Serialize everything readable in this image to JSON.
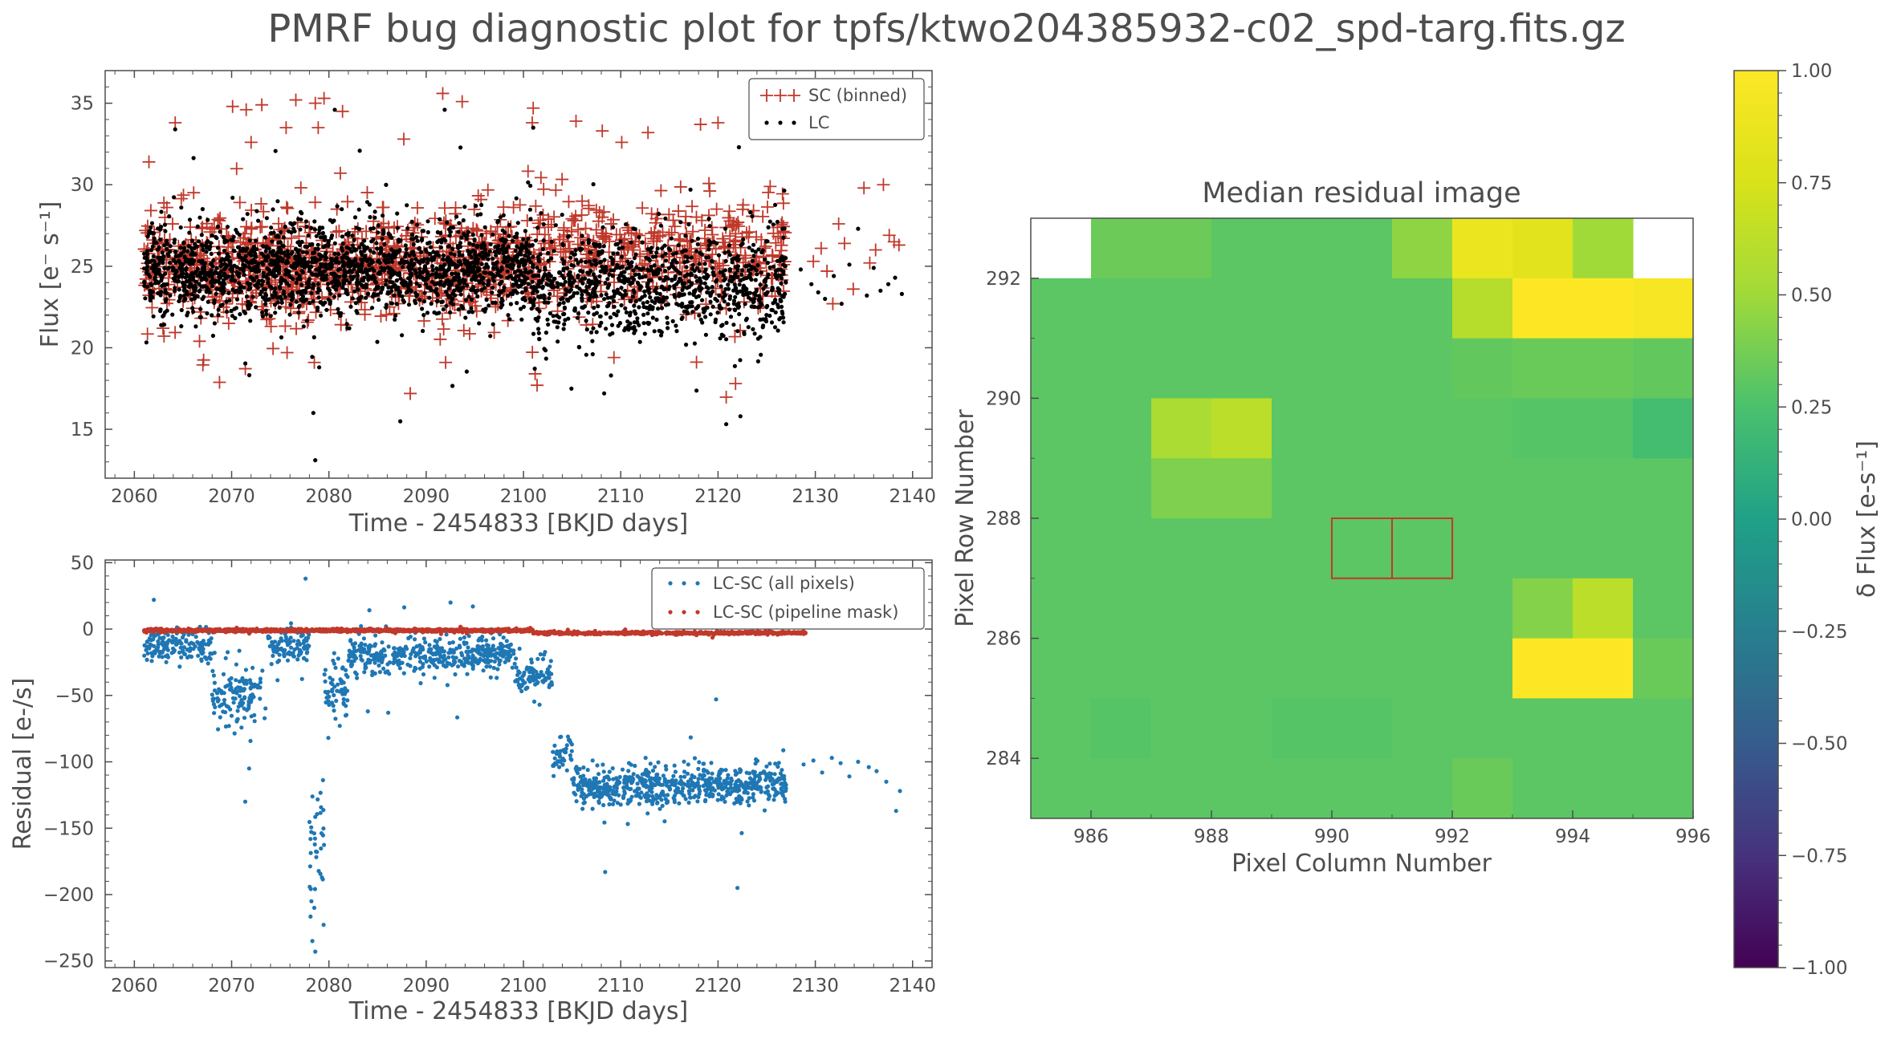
{
  "figure": {
    "title": "PMRF bug diagnostic plot for tpfs/ktwo204385932-c02_spd-targ.fits.gz"
  },
  "colors": {
    "sc": "#c0392b",
    "lc": "#000000",
    "all_pixels": "#1f77b4",
    "pipeline_mask": "#c0392b",
    "axis": "#4d4d4d"
  },
  "chart_data": [
    {
      "id": "flux",
      "type": "scatter",
      "xlabel": "Time - 2454833 [BKJD days]",
      "ylabel": "Flux [e⁻ s⁻¹]",
      "xlim": [
        2057,
        2142
      ],
      "ylim": [
        12,
        37
      ],
      "xticks": [
        2060,
        2070,
        2080,
        2090,
        2100,
        2110,
        2120,
        2130,
        2140
      ],
      "yticks": [
        15,
        20,
        25,
        30,
        35
      ],
      "legend": "top-right",
      "series": [
        {
          "name": "SC (binned)",
          "marker": "plus",
          "color": "#c0392b",
          "segments": [
            {
              "x_start": 2061,
              "x_end": 2101,
              "mean": 25.0,
              "spread": 2.4,
              "count": 950
            },
            {
              "x_start": 2101,
              "x_end": 2127,
              "mean": 25.8,
              "spread": 2.6,
              "count": 420
            }
          ],
          "sparse_points": [
            [
              2129.8,
              25.3
            ],
            [
              2130.6,
              26.1
            ],
            [
              2131.2,
              24.7
            ],
            [
              2131.8,
              22.7
            ],
            [
              2132.4,
              27.6
            ],
            [
              2133.0,
              26.4
            ],
            [
              2133.9,
              23.6
            ],
            [
              2135.0,
              29.8
            ],
            [
              2135.6,
              25.2
            ],
            [
              2136.2,
              26.0
            ],
            [
              2137.0,
              30.0
            ],
            [
              2137.6,
              26.9
            ],
            [
              2138.1,
              26.5
            ],
            [
              2138.6,
              26.3
            ]
          ],
          "outliers": [
            [
              2061.5,
              31.4
            ],
            [
              2064.2,
              33.8
            ],
            [
              2070.1,
              34.8
            ],
            [
              2071.5,
              34.6
            ],
            [
              2072.0,
              32.6
            ],
            [
              2073.1,
              34.9
            ],
            [
              2075.6,
              33.5
            ],
            [
              2076.6,
              35.2
            ],
            [
              2078.6,
              35.0
            ],
            [
              2079.5,
              35.3
            ],
            [
              2078.9,
              33.5
            ],
            [
              2081.4,
              34.5
            ],
            [
              2087.7,
              32.8
            ],
            [
              2091.7,
              35.6
            ],
            [
              2093.7,
              35.1
            ],
            [
              2100.9,
              33.8
            ],
            [
              2101.0,
              34.7
            ],
            [
              2105.4,
              33.9
            ],
            [
              2108.1,
              33.3
            ],
            [
              2110.1,
              32.6
            ],
            [
              2112.8,
              33.2
            ],
            [
              2118.2,
              33.7
            ],
            [
              2120.0,
              33.8
            ],
            [
              2078.5,
              19.1
            ],
            [
              2092.0,
              19.1
            ],
            [
              2101.2,
              18.4
            ],
            [
              2101.4,
              17.7
            ],
            [
              2109.3,
              19.4
            ],
            [
              2121.8,
              17.8
            ],
            [
              2066.7,
              20.4
            ],
            [
              2075.7,
              19.7
            ]
          ]
        },
        {
          "name": "LC",
          "marker": "dot",
          "color": "#000000",
          "segments": [
            {
              "x_start": 2061,
              "x_end": 2101,
              "mean": 24.8,
              "spread": 2.2,
              "count": 1900
            },
            {
              "x_start": 2101,
              "x_end": 2127,
              "mean": 23.8,
              "spread": 2.5,
              "count": 950
            }
          ],
          "sparse_points": [
            [
              2128.5,
              24.8
            ],
            [
              2129.6,
              23.9
            ],
            [
              2130.3,
              23.4
            ],
            [
              2131.0,
              23.0
            ],
            [
              2131.9,
              24.4
            ],
            [
              2132.7,
              22.7
            ],
            [
              2133.5,
              25.1
            ],
            [
              2134.4,
              27.3
            ],
            [
              2135.3,
              23.2
            ],
            [
              2136.0,
              24.9
            ],
            [
              2136.7,
              23.5
            ],
            [
              2137.5,
              23.9
            ],
            [
              2138.2,
              24.3
            ],
            [
              2138.9,
              23.3
            ]
          ],
          "outliers": [
            [
              2078.4,
              16.0
            ],
            [
              2078.6,
              13.1
            ],
            [
              2122.3,
              15.8
            ],
            [
              2080.6,
              34.6
            ],
            [
              2091.9,
              34.6
            ],
            [
              2064.2,
              33.4
            ],
            [
              2108.3,
              17.2
            ],
            [
              2079.0,
              18.8
            ],
            [
              2109.0,
              18.3
            ],
            [
              2101.0,
              33.5
            ]
          ]
        }
      ]
    },
    {
      "id": "residual",
      "type": "scatter",
      "xlabel": "Time - 2454833 [BKJD days]",
      "ylabel": "Residual [e-/s]",
      "xlim": [
        2057,
        2142
      ],
      "ylim": [
        -255,
        52
      ],
      "xticks": [
        2060,
        2070,
        2080,
        2090,
        2100,
        2110,
        2120,
        2130,
        2140
      ],
      "yticks": [
        50,
        0,
        -50,
        -100,
        -150,
        -200,
        -250
      ],
      "legend": "top-right",
      "series": [
        {
          "name": "LC-SC (all pixels)",
          "marker": "dot",
          "color": "#1f77b4",
          "segments": [
            {
              "x_start": 2061,
              "x_end": 2068,
              "mean": -12,
              "spread": 10,
              "count": 150
            },
            {
              "x_start": 2068,
              "x_end": 2073.5,
              "mean": -50,
              "spread": 20,
              "count": 130
            },
            {
              "x_start": 2073.5,
              "x_end": 2078,
              "mean": -12,
              "spread": 9,
              "count": 100
            },
            {
              "x_start": 2078,
              "x_end": 2079.5,
              "mean": -160,
              "spread": 45,
              "count": 35
            },
            {
              "x_start": 2079.5,
              "x_end": 2082,
              "mean": -45,
              "spread": 20,
              "count": 60
            },
            {
              "x_start": 2082,
              "x_end": 2099,
              "mean": -20,
              "spread": 11,
              "count": 420
            },
            {
              "x_start": 2099,
              "x_end": 2103,
              "mean": -35,
              "spread": 12,
              "count": 90
            },
            {
              "x_start": 2103,
              "x_end": 2105,
              "mean": -95,
              "spread": 12,
              "count": 40
            },
            {
              "x_start": 2105,
              "x_end": 2127,
              "mean": -118,
              "spread": 11,
              "count": 650
            }
          ],
          "sparse_points": [
            [
              2128.8,
              -102
            ],
            [
              2129.8,
              -99
            ],
            [
              2130.7,
              -108
            ],
            [
              2131.7,
              -97
            ],
            [
              2132.6,
              -101
            ],
            [
              2133.5,
              -111
            ],
            [
              2134.4,
              -100
            ],
            [
              2135.5,
              -104
            ],
            [
              2136.3,
              -107
            ],
            [
              2137.3,
              -115
            ],
            [
              2138.3,
              -137
            ],
            [
              2138.7,
              -122
            ]
          ],
          "outliers": [
            [
              2078.2,
              -205
            ],
            [
              2078.5,
              -210
            ],
            [
              2078.3,
              -235
            ],
            [
              2078.6,
              -243
            ],
            [
              2077.6,
              38
            ],
            [
              2062.0,
              22
            ],
            [
              2108.4,
              -183
            ],
            [
              2122.0,
              -195
            ],
            [
              2119.8,
              -53
            ],
            [
              2084.0,
              -62
            ],
            [
              2086.1,
              -63
            ],
            [
              2092.5,
              20
            ],
            [
              2094.8,
              17
            ],
            [
              2071.4,
              -130
            ],
            [
              2071.8,
              -105
            ]
          ]
        },
        {
          "name": "LC-SC (pipeline mask)",
          "marker": "dot",
          "color": "#c0392b",
          "segments": [
            {
              "x_start": 2061,
              "x_end": 2101,
              "mean": -1,
              "spread": 0.8,
              "count": 1300
            },
            {
              "x_start": 2101,
              "x_end": 2129,
              "mean": -3,
              "spread": 0.8,
              "count": 600
            }
          ],
          "sparse_points": [],
          "outliers": []
        }
      ]
    },
    {
      "id": "median-residual",
      "type": "heatmap",
      "title": "Median residual image",
      "xlabel": "Pixel Column Number",
      "ylabel": "Pixel Row Number",
      "x_edges": [
        985,
        996
      ],
      "y_edges": [
        283,
        293
      ],
      "xticks": [
        986,
        988,
        990,
        992,
        994,
        996
      ],
      "yticks": [
        284,
        286,
        288,
        290,
        292
      ],
      "colormap": "viridis",
      "vmin": -1.0,
      "vmax": 1.0,
      "rows_top_to_bottom": [
        [
          null,
          0.35,
          0.35,
          0.3,
          0.3,
          0.3,
          0.45,
          0.88,
          0.82,
          0.5,
          null
        ],
        [
          0.3,
          0.3,
          0.3,
          0.3,
          0.3,
          0.3,
          0.3,
          0.6,
          1.0,
          1.0,
          0.95
        ],
        [
          0.3,
          0.3,
          0.3,
          0.3,
          0.3,
          0.3,
          0.3,
          0.32,
          0.34,
          0.34,
          0.32
        ],
        [
          0.3,
          0.3,
          0.55,
          0.62,
          0.3,
          0.3,
          0.3,
          0.3,
          0.28,
          0.28,
          0.22
        ],
        [
          0.3,
          0.3,
          0.4,
          0.4,
          0.3,
          0.3,
          0.3,
          0.3,
          0.3,
          0.3,
          0.3
        ],
        [
          0.3,
          0.3,
          0.3,
          0.3,
          0.3,
          0.3,
          0.3,
          0.3,
          0.3,
          0.3,
          0.3
        ],
        [
          0.3,
          0.3,
          0.3,
          0.3,
          0.3,
          0.3,
          0.3,
          0.3,
          0.42,
          0.62,
          0.3
        ],
        [
          0.3,
          0.3,
          0.3,
          0.3,
          0.3,
          0.3,
          0.3,
          0.3,
          1.0,
          1.0,
          0.34
        ],
        [
          0.3,
          0.28,
          0.3,
          0.3,
          0.28,
          0.28,
          0.3,
          0.3,
          0.3,
          0.3,
          0.3
        ],
        [
          0.3,
          0.3,
          0.3,
          0.3,
          0.3,
          0.3,
          0.3,
          0.34,
          0.3,
          0.3,
          0.3
        ]
      ],
      "aperture_outline": {
        "color": "#c0392b",
        "pixels": [
          [
            990,
            287
          ],
          [
            991,
            287
          ]
        ]
      },
      "colorbar": {
        "label": "δ Flux [e-s⁻¹]",
        "ticks": [
          1.0,
          0.75,
          0.5,
          0.25,
          0.0,
          -0.25,
          -0.5,
          -0.75,
          -1.0
        ],
        "tick_labels": [
          "1.00",
          "0.75",
          "0.50",
          "0.25",
          "0.00",
          "−0.25",
          "−0.50",
          "−0.75",
          "−1.00"
        ]
      }
    }
  ]
}
